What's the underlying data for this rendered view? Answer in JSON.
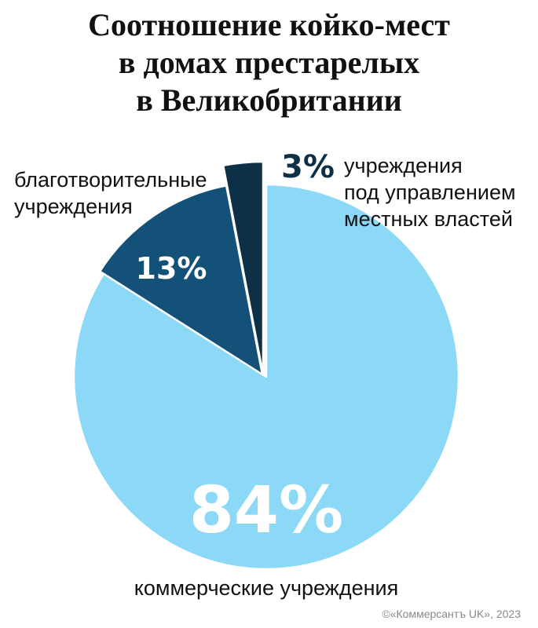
{
  "title_lines": [
    "Соотношение койко-мест",
    "в домах престарелых",
    "в Великобритании"
  ],
  "chart_data": {
    "type": "pie",
    "title": "Соотношение койко-мест в домах престарелых в Великобритании",
    "slices": [
      {
        "label_lines": [
          "коммерческие учреждения"
        ],
        "value": 84,
        "value_label": "84%",
        "color": "#8cd8f7",
        "label_color": "#ffffff"
      },
      {
        "label_lines": [
          "благотворительные",
          "учреждения"
        ],
        "value": 13,
        "value_label": "13%",
        "color": "#145179",
        "label_color": "#ffffff"
      },
      {
        "label_lines": [
          "учреждения",
          "под управлением",
          "местных властей"
        ],
        "value": 3,
        "value_label": "3%",
        "color": "#0d3047",
        "label_color": "#0d3047"
      }
    ]
  },
  "credit": "©«Коммерсантъ UK», 2023"
}
